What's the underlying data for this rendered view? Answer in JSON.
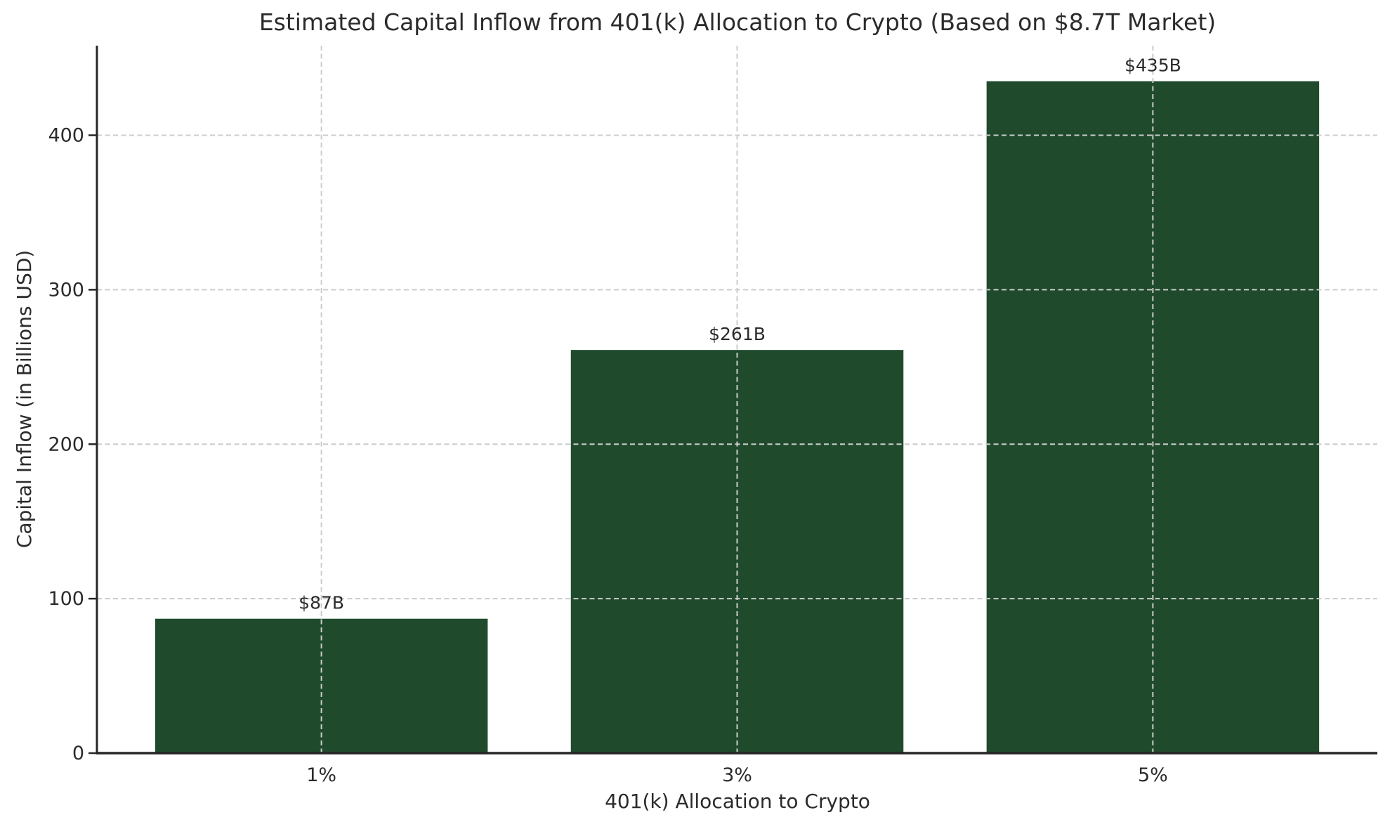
{
  "chart_data": {
    "type": "bar",
    "title": "Estimated Capital Inflow from 401(k) Allocation to Crypto (Based on $8.7T Market)",
    "xlabel": "401(k) Allocation to Crypto",
    "ylabel": "Capital Inflow (in Billions USD)",
    "categories": [
      "1%",
      "3%",
      "5%"
    ],
    "values": [
      87,
      261,
      435
    ],
    "value_labels": [
      "$87B",
      "$261B",
      "$435B"
    ],
    "yticks": [
      0,
      100,
      200,
      300,
      400
    ],
    "ylim": [
      0,
      458
    ],
    "bar_width_fraction": 0.8,
    "grid": "dashed, horizontal at yticks and vertical at category centers, drawn above bars",
    "legend": "none",
    "colors": {
      "bar": "#1f4b2c",
      "grid": "#cccccc",
      "axis": "#262626",
      "text": "#2b2b2b",
      "background": "#ffffff"
    }
  }
}
